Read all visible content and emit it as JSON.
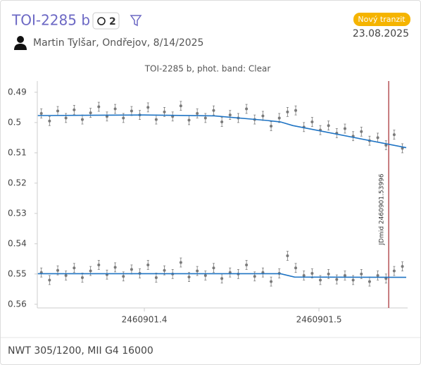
{
  "header": {
    "title": "TOI-2285 b",
    "count": "2",
    "badge": "Nový tranzit",
    "date": "23.08.2025",
    "observer": "Martin Tylšar, Ondřejov, 8/14/2025"
  },
  "footer": "NWT 305/1200, MII G4 16000",
  "chart_data": {
    "type": "scatter",
    "title": "TOI-2285 b, phot. band: Clear",
    "x": [
      2460901.341,
      2460901.3457,
      2460901.3504,
      2460901.3551,
      2460901.3598,
      2460901.3645,
      2460901.3692,
      2460901.3739,
      2460901.3786,
      2460901.3833,
      2460901.388,
      2460901.3927,
      2460901.3974,
      2460901.4021,
      2460901.4068,
      2460901.4115,
      2460901.4162,
      2460901.4209,
      2460901.4256,
      2460901.4303,
      2460901.435,
      2460901.4397,
      2460901.4444,
      2460901.4491,
      2460901.4538,
      2460901.4585,
      2460901.4632,
      2460901.4679,
      2460901.4726,
      2460901.4773,
      2460901.482,
      2460901.4867,
      2460901.4914,
      2460901.4961,
      2460901.5008,
      2460901.5055,
      2460901.5102,
      2460901.5149,
      2460901.5196,
      2460901.5243,
      2460901.529,
      2460901.5337,
      2460901.5384,
      2460901.5431,
      2460901.5478
    ],
    "series": [
      {
        "mode": "markers",
        "color": "#7a7a7a",
        "error": 0.0015,
        "values": [
          0.497,
          0.4995,
          0.4962,
          0.4985,
          0.4958,
          0.499,
          0.4968,
          0.4948,
          0.498,
          0.4955,
          0.4985,
          0.4962,
          0.4975,
          0.495,
          0.499,
          0.4965,
          0.498,
          0.4945,
          0.4992,
          0.497,
          0.4985,
          0.496,
          0.4998,
          0.4975,
          0.4985,
          0.4955,
          0.499,
          0.4978,
          0.5012,
          0.4985,
          0.4965,
          0.496,
          0.5015,
          0.4998,
          0.5025,
          0.501,
          0.5035,
          0.502,
          0.5045,
          0.503,
          0.506,
          0.505,
          0.5075,
          0.504,
          0.5085
        ]
      },
      {
        "mode": "markers",
        "color": "#7a7a7a",
        "error": 0.0015,
        "values": [
          0.5495,
          0.552,
          0.5488,
          0.5505,
          0.548,
          0.5512,
          0.549,
          0.547,
          0.5502,
          0.5478,
          0.5508,
          0.5485,
          0.5498,
          0.547,
          0.5512,
          0.5488,
          0.55,
          0.5462,
          0.551,
          0.549,
          0.5505,
          0.548,
          0.5515,
          0.5495,
          0.55,
          0.547,
          0.5508,
          0.5495,
          0.5525,
          0.5498,
          0.544,
          0.548,
          0.5505,
          0.5498,
          0.552,
          0.55,
          0.5518,
          0.5505,
          0.552,
          0.55,
          0.5525,
          0.5505,
          0.5515,
          0.549,
          0.5475
        ]
      },
      {
        "mode": "line",
        "color": "#1f74c4",
        "x": [
          2460901.339,
          2460901.4,
          2460901.44,
          2460901.47,
          2460901.478,
          2460901.485,
          2460901.55
        ],
        "values": [
          0.4977,
          0.4975,
          0.4978,
          0.4993,
          0.4998,
          0.501,
          0.5083
        ]
      },
      {
        "mode": "line",
        "color": "#1f74c4",
        "x": [
          2460901.339,
          2460901.478,
          2460901.486,
          2460901.55
        ],
        "values": [
          0.5499,
          0.5499,
          0.551,
          0.5511
        ]
      }
    ],
    "annotation": {
      "x": 2460901.53996,
      "label": "JDmid 2460901.53996",
      "color": "#a3262c"
    },
    "xlim": [
      2460901.3387,
      2460901.5508
    ],
    "xticks": [
      2460901.4,
      2460901.5
    ],
    "ylim": [
      0.4863,
      0.5612
    ],
    "y_inverted": true,
    "yticks": [
      0.49,
      0.5,
      0.51,
      0.52,
      0.53,
      0.54,
      0.55,
      0.56
    ]
  }
}
